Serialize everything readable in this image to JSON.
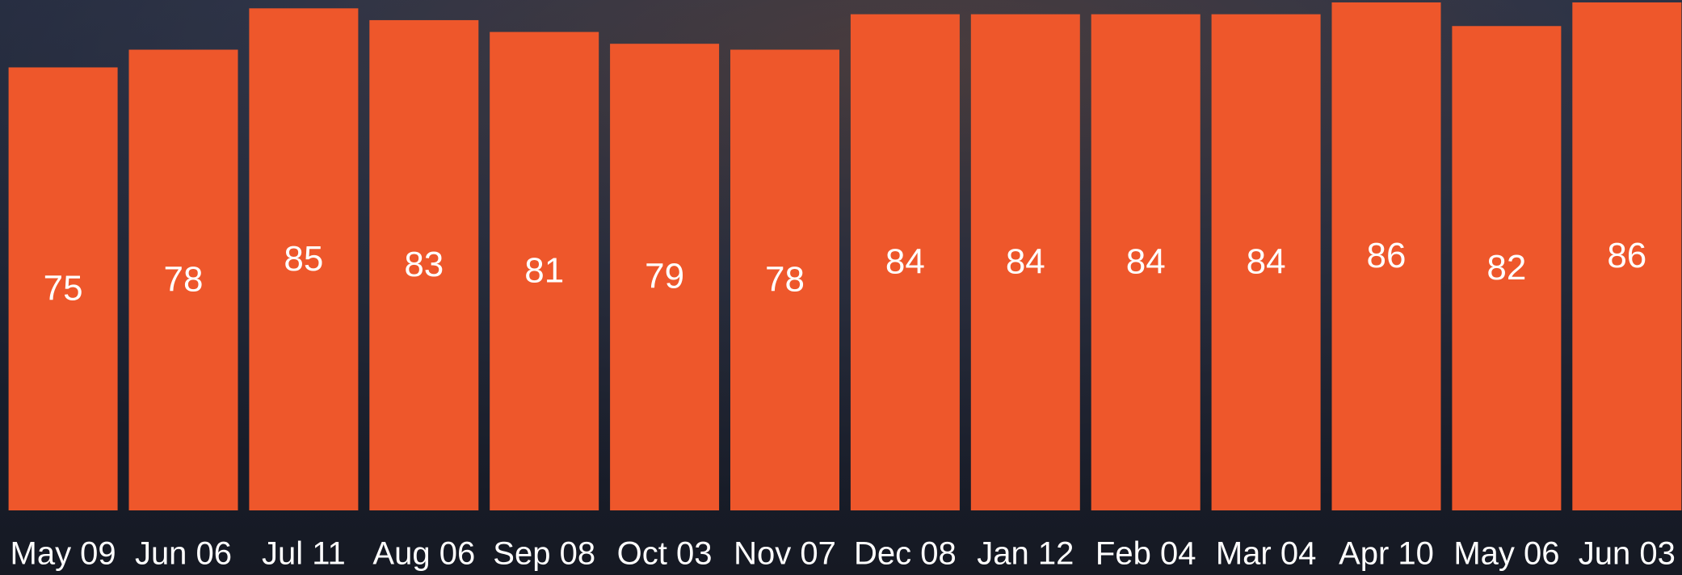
{
  "chart_data": {
    "type": "bar",
    "categories": [
      "May 09",
      "Jun 06",
      "Jul 11",
      "Aug 06",
      "Sep 08",
      "Oct 03",
      "Nov 07",
      "Dec 08",
      "Jan 12",
      "Feb 04",
      "Mar 04",
      "Apr 10",
      "May 06",
      "Jun 03"
    ],
    "values": [
      75,
      78,
      85,
      83,
      81,
      79,
      78,
      84,
      84,
      84,
      84,
      86,
      82,
      86
    ],
    "color": "#ee572b",
    "ylim": [
      0,
      86
    ]
  }
}
